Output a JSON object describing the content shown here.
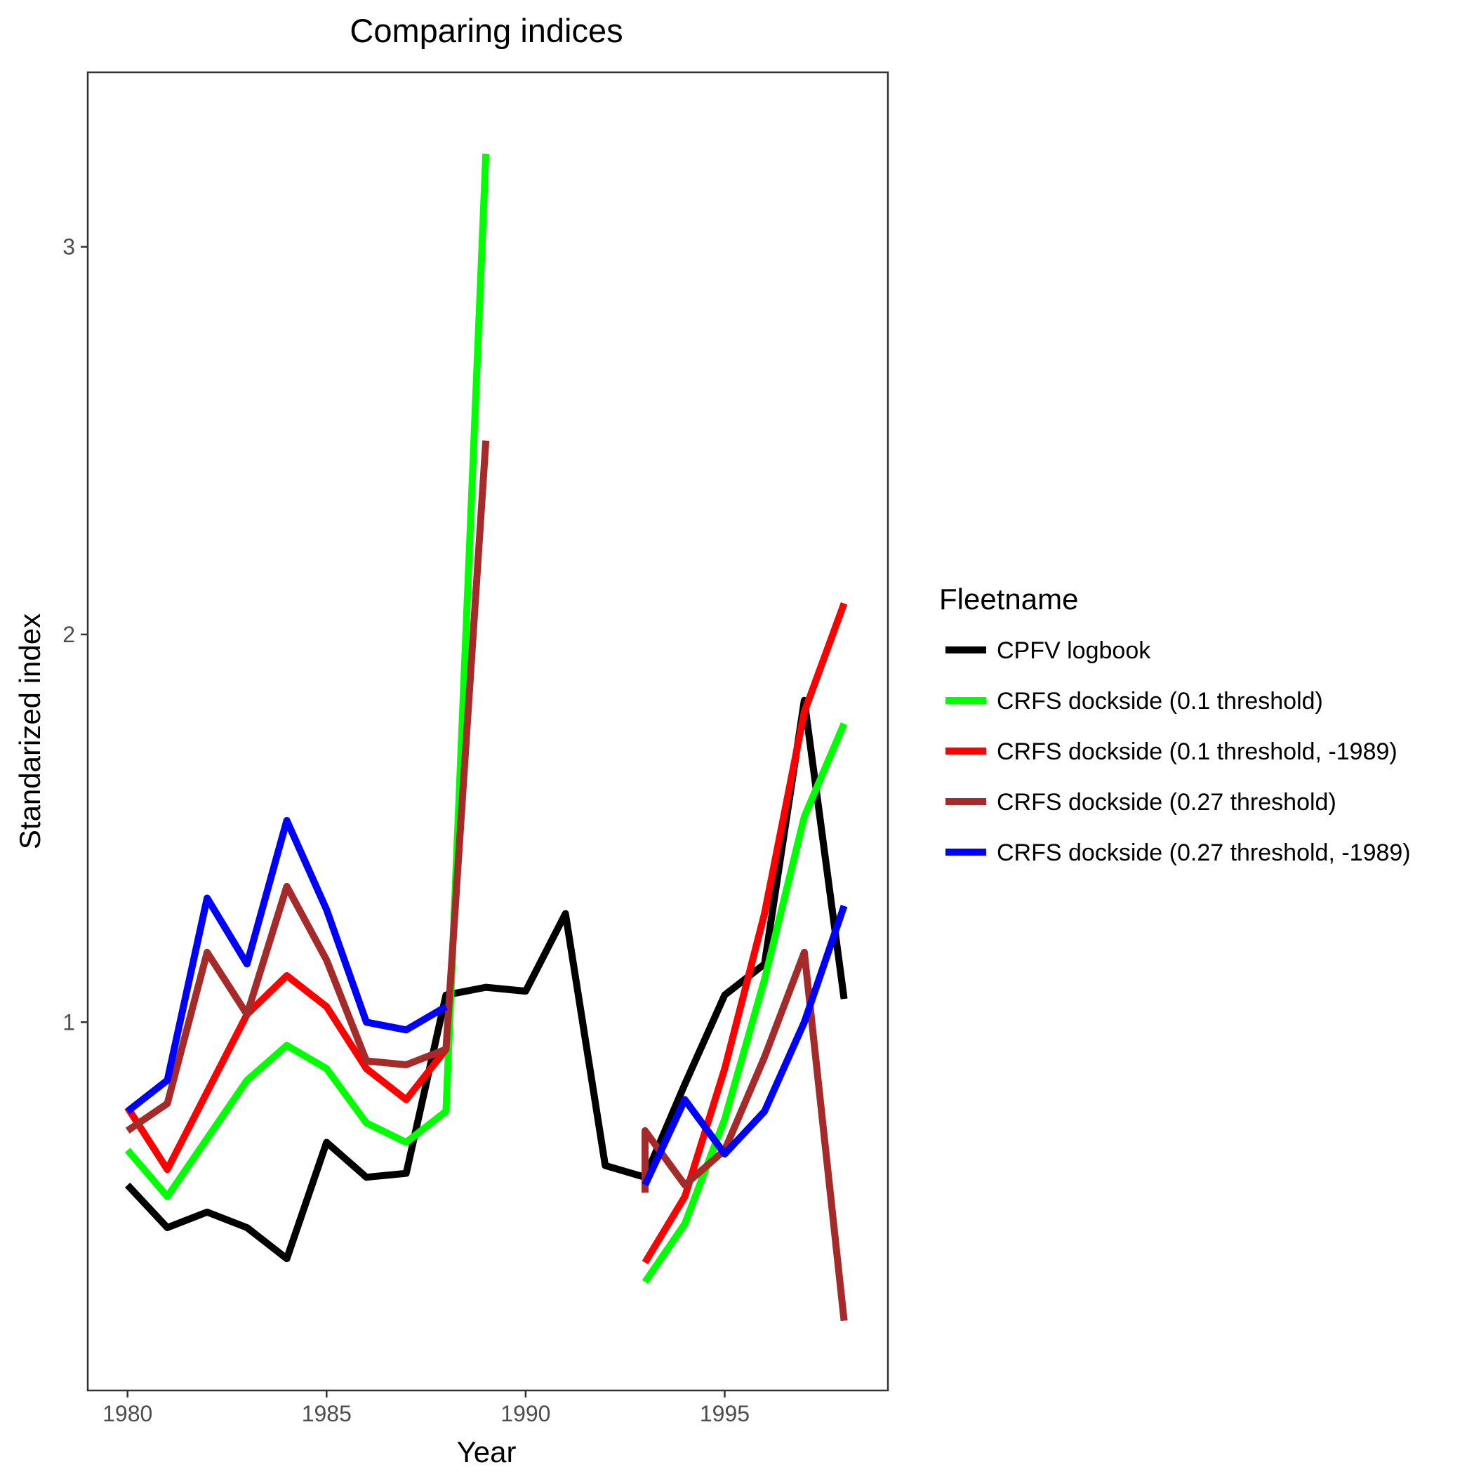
{
  "chart_data": {
    "type": "line",
    "title": "Comparing indices",
    "xlabel": "Year",
    "ylabel": "Standarized index",
    "xlim": [
      1979.0,
      1999.1
    ],
    "ylim": [
      0.05,
      3.45
    ],
    "x_ticks": [
      1980,
      1985,
      1990,
      1995
    ],
    "y_ticks": [
      1,
      2,
      3
    ],
    "grid": false,
    "legend_title": "Fleetname",
    "legend_position": "right",
    "series": [
      {
        "name": "CPFV logbook",
        "color": "#000000",
        "segments": [
          {
            "x": [
              1980,
              1981,
              1982,
              1983,
              1984,
              1985,
              1986,
              1987,
              1988,
              1989,
              1990,
              1991,
              1992,
              1993,
              1994,
              1995,
              1996,
              1997,
              1998
            ],
            "y": [
              0.58,
              0.47,
              0.51,
              0.47,
              0.39,
              0.69,
              0.6,
              0.61,
              1.07,
              1.09,
              1.08,
              1.28,
              0.63,
              0.6,
              0.84,
              1.07,
              1.15,
              1.83,
              1.06
            ]
          }
        ]
      },
      {
        "name": "CRFS dockside (0.1 threshold)",
        "color": "#00ff00",
        "segments": [
          {
            "x": [
              1980,
              1981,
              1982,
              1983,
              1984,
              1985,
              1986,
              1987,
              1988,
              1989
            ],
            "y": [
              0.67,
              0.55,
              0.7,
              0.85,
              0.94,
              0.88,
              0.74,
              0.69,
              0.77,
              3.24
            ]
          },
          {
            "x": [
              1993,
              1994,
              1995,
              1996,
              1997,
              1998
            ],
            "y": [
              0.33,
              0.48,
              0.75,
              1.11,
              1.53,
              1.77
            ]
          }
        ]
      },
      {
        "name": "CRFS dockside (0.1 threshold, -1989)",
        "color": "#ff0000",
        "segments": [
          {
            "x": [
              1980,
              1981,
              1982,
              1983,
              1984,
              1985,
              1986,
              1987,
              1988
            ],
            "y": [
              0.78,
              0.62,
              0.82,
              1.02,
              1.12,
              1.04,
              0.88,
              0.8,
              0.93
            ]
          },
          {
            "x": [
              1993,
              1994,
              1995,
              1996,
              1997,
              1998
            ],
            "y": [
              0.38,
              0.55,
              0.88,
              1.28,
              1.8,
              2.08
            ]
          }
        ]
      },
      {
        "name": "CRFS dockside (0.27 threshold)",
        "color": "#a52a2a",
        "segments": [
          {
            "x": [
              1980,
              1981,
              1982,
              1983,
              1984,
              1985,
              1986,
              1987,
              1988,
              1989
            ],
            "y": [
              0.72,
              0.79,
              1.18,
              1.02,
              1.35,
              1.16,
              0.9,
              0.89,
              0.93,
              2.5
            ]
          },
          {
            "x": [
              1993,
              1993,
              1994,
              1995,
              1996,
              1997,
              1998
            ],
            "y": [
              0.56,
              0.72,
              0.58,
              0.67,
              0.91,
              1.18,
              0.23
            ]
          }
        ]
      },
      {
        "name": "CRFS dockside (0.27 threshold, -1989)",
        "color": "#0000ff",
        "segments": [
          {
            "x": [
              1980,
              1981,
              1982,
              1983,
              1984,
              1985,
              1986,
              1987,
              1988
            ],
            "y": [
              0.77,
              0.85,
              1.32,
              1.15,
              1.52,
              1.29,
              1.0,
              0.98,
              1.04
            ]
          },
          {
            "x": [
              1993,
              1994,
              1995,
              1996,
              1997,
              1998
            ],
            "y": [
              0.58,
              0.8,
              0.66,
              0.77,
              1.0,
              1.3
            ]
          }
        ]
      }
    ]
  }
}
